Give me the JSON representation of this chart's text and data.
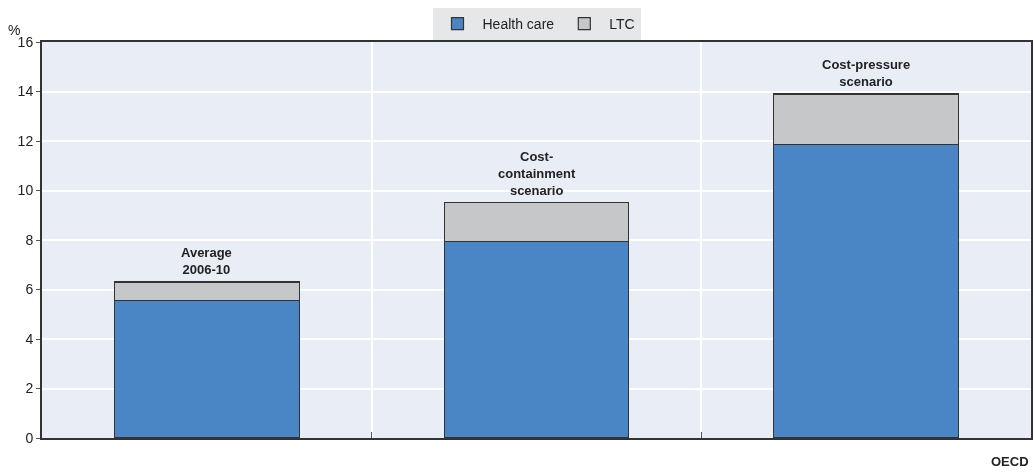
{
  "chart_data": {
    "type": "bar",
    "stacked": true,
    "ylabel": "%",
    "categories": [
      "Average\n2006-10",
      "Cost-\ncontainment\nscenario",
      "Cost-pressure\nscenario"
    ],
    "series": [
      {
        "name": "Health care",
        "color": "#4a86c5",
        "values": [
          5.55,
          7.95,
          11.85
        ]
      },
      {
        "name": "LTC",
        "color": "#c6c7c9",
        "values": [
          0.75,
          1.55,
          2.05
        ]
      }
    ],
    "ylim": [
      0,
      16
    ],
    "yticks": [
      0,
      2,
      4,
      6,
      8,
      10,
      12,
      14,
      16
    ],
    "grid": true,
    "legend": "top",
    "annotations": [
      "OECD"
    ]
  }
}
